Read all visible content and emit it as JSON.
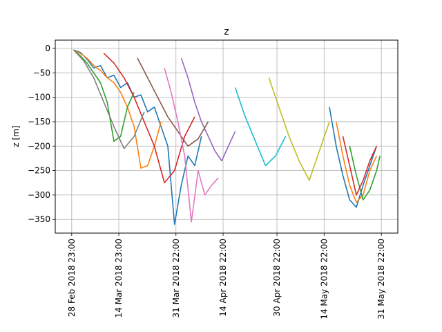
{
  "chart_data": {
    "type": "line",
    "title": "z",
    "xlabel": "",
    "ylabel": "z  [m]",
    "x_range": [
      "2018-02-28 23:00",
      "2018-05-31 22:00"
    ],
    "ylim": [
      -378,
      17
    ],
    "grid": true,
    "legend": "none",
    "x_ticks": [
      {
        "date": "2018-02-28 23:00",
        "label": "28 Feb 2018 23:00"
      },
      {
        "date": "2018-03-14 23:00",
        "label": "14 Mar 2018 23:00"
      },
      {
        "date": "2018-03-31 22:00",
        "label": "31 Mar 2018 22:00"
      },
      {
        "date": "2018-04-14 22:00",
        "label": "14 Apr 2018 22:00"
      },
      {
        "date": "2018-04-30 22:00",
        "label": "30 Apr 2018 22:00"
      },
      {
        "date": "2018-05-14 22:00",
        "label": "14 May 2018 22:00"
      },
      {
        "date": "2018-05-31 22:00",
        "label": "31 May 2018 22:00"
      }
    ],
    "y_ticks": [
      {
        "value": 0,
        "label": "0"
      },
      {
        "value": -50,
        "label": "−50"
      },
      {
        "value": -100,
        "label": "−100"
      },
      {
        "value": -150,
        "label": "−150"
      },
      {
        "value": -200,
        "label": "−200"
      },
      {
        "value": -250,
        "label": "−250"
      },
      {
        "value": -300,
        "label": "−300"
      },
      {
        "value": -350,
        "label": "−350"
      }
    ],
    "series_colors": [
      "#1f77b4",
      "#ff7f0e",
      "#2ca02c",
      "#d62728",
      "#9467bd",
      "#8c564b",
      "#e377c2",
      "#7f7f7f",
      "#bcbd22",
      "#17becf"
    ],
    "series": [
      {
        "x": [
          "2018-03-01",
          "2018-03-03",
          "2018-03-05",
          "2018-03-07",
          "2018-03-09",
          "2018-03-11",
          "2018-03-13",
          "2018-03-15",
          "2018-03-17",
          "2018-03-19",
          "2018-03-21",
          "2018-03-23",
          "2018-03-25",
          "2018-03-27",
          "2018-03-29",
          "2018-03-31",
          "2018-04-02",
          "2018-04-04",
          "2018-04-06",
          "2018-04-08"
        ],
        "y": [
          -3,
          -8,
          -22,
          -40,
          -35,
          -60,
          -55,
          -80,
          -70,
          -100,
          -95,
          -130,
          -120,
          -160,
          -200,
          -360,
          -280,
          -220,
          -240,
          -180
        ]
      },
      {
        "x": [
          "2018-03-01",
          "2018-03-03",
          "2018-03-05",
          "2018-03-07",
          "2018-03-09",
          "2018-03-11",
          "2018-03-13",
          "2018-03-15",
          "2018-03-17",
          "2018-03-19",
          "2018-03-21",
          "2018-03-23",
          "2018-03-25",
          "2018-03-27"
        ],
        "y": [
          -3,
          -10,
          -20,
          -35,
          -45,
          -60,
          -70,
          -90,
          -120,
          -160,
          -245,
          -240,
          -200,
          -150
        ]
      },
      {
        "x": [
          "2018-03-01",
          "2018-03-03",
          "2018-03-05",
          "2018-03-07",
          "2018-03-09",
          "2018-03-11",
          "2018-03-13",
          "2018-03-15",
          "2018-03-17",
          "2018-03-19"
        ],
        "y": [
          -3,
          -15,
          -30,
          -50,
          -70,
          -110,
          -190,
          -180,
          -120,
          -90
        ]
      },
      {
        "x": [
          "2018-03-10",
          "2018-03-13",
          "2018-03-16",
          "2018-03-19",
          "2018-03-22",
          "2018-03-25",
          "2018-03-28",
          "2018-03-31",
          "2018-04-03",
          "2018-04-06"
        ],
        "y": [
          -10,
          -30,
          -60,
          -100,
          -150,
          -200,
          -275,
          -250,
          -180,
          -140
        ]
      },
      {
        "x": [
          "2018-04-02",
          "2018-04-04",
          "2018-04-06",
          "2018-04-08",
          "2018-04-10",
          "2018-04-12",
          "2018-04-14",
          "2018-04-16",
          "2018-04-18"
        ],
        "y": [
          -20,
          -60,
          -110,
          -150,
          -180,
          -210,
          -230,
          -200,
          -170
        ]
      },
      {
        "x": [
          "2018-03-20",
          "2018-03-23",
          "2018-03-26",
          "2018-03-29",
          "2018-04-01",
          "2018-04-04",
          "2018-04-07",
          "2018-04-10"
        ],
        "y": [
          -20,
          -60,
          -100,
          -140,
          -170,
          -200,
          -185,
          -150
        ]
      },
      {
        "x": [
          "2018-03-28",
          "2018-03-30",
          "2018-04-01",
          "2018-04-03",
          "2018-04-05",
          "2018-04-07",
          "2018-04-09",
          "2018-04-11",
          "2018-04-13"
        ],
        "y": [
          -40,
          -90,
          -150,
          -220,
          -355,
          -250,
          -300,
          -280,
          -265
        ]
      },
      {
        "x": [
          "2018-03-01",
          "2018-03-04",
          "2018-03-07",
          "2018-03-10",
          "2018-03-13",
          "2018-03-16",
          "2018-03-19",
          "2018-03-22"
        ],
        "y": [
          -3,
          -25,
          -60,
          -110,
          -160,
          -205,
          -180,
          -130
        ]
      },
      {
        "x": [
          "2018-04-28",
          "2018-05-01",
          "2018-05-04",
          "2018-05-07",
          "2018-05-10",
          "2018-05-13",
          "2018-05-16"
        ],
        "y": [
          -60,
          -120,
          -180,
          -230,
          -270,
          -210,
          -150
        ]
      },
      {
        "x": [
          "2018-04-18",
          "2018-04-21",
          "2018-04-24",
          "2018-04-27",
          "2018-04-30",
          "2018-05-03"
        ],
        "y": [
          -80,
          -140,
          -190,
          -240,
          -220,
          -180
        ]
      },
      {
        "x": [
          "2018-05-16",
          "2018-05-18",
          "2018-05-20",
          "2018-05-22",
          "2018-05-24",
          "2018-05-26",
          "2018-05-28",
          "2018-05-30"
        ],
        "y": [
          -120,
          -200,
          -260,
          -310,
          -325,
          -280,
          -240,
          -200
        ]
      },
      {
        "x": [
          "2018-05-18",
          "2018-05-20",
          "2018-05-22",
          "2018-05-24",
          "2018-05-26",
          "2018-05-28",
          "2018-05-30"
        ],
        "y": [
          -150,
          -220,
          -280,
          -315,
          -300,
          -250,
          -220
        ]
      },
      {
        "x": [
          "2018-05-22",
          "2018-05-24",
          "2018-05-26",
          "2018-05-28",
          "2018-05-30",
          "2018-05-31"
        ],
        "y": [
          -200,
          -260,
          -310,
          -290,
          -250,
          -220
        ]
      },
      {
        "x": [
          "2018-05-20",
          "2018-05-22",
          "2018-05-24",
          "2018-05-26",
          "2018-05-28",
          "2018-05-30"
        ],
        "y": [
          -180,
          -240,
          -300,
          -270,
          -230,
          -200
        ]
      }
    ]
  }
}
